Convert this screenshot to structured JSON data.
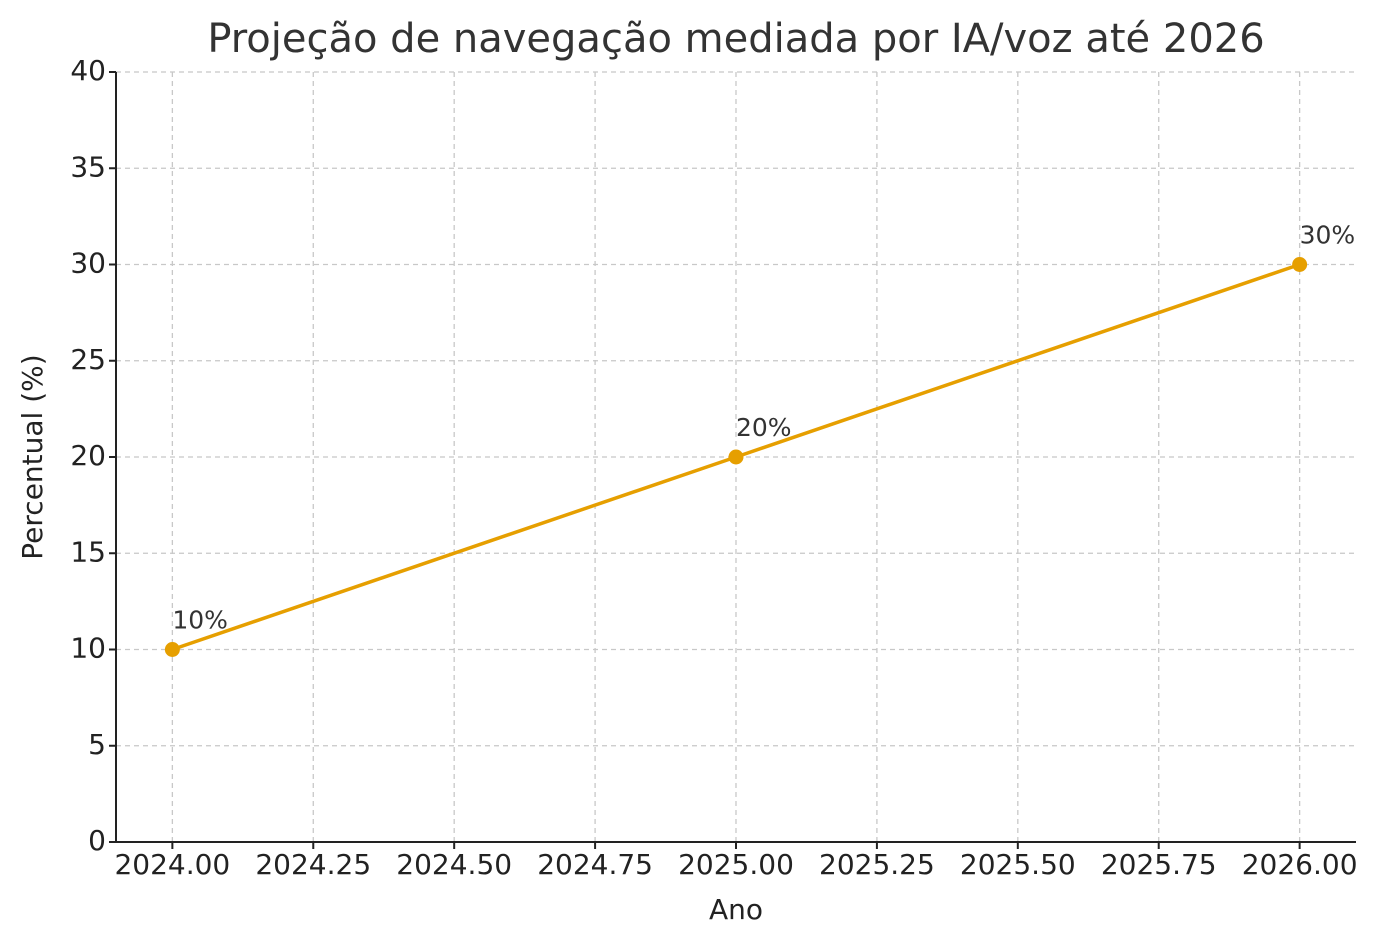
{
  "chart_data": {
    "type": "line",
    "title": "Projeção de navegação mediada por IA/voz até 2026",
    "x_label": "Ano",
    "y_label": "Percentual (%)",
    "x": [
      2024,
      2025,
      2026
    ],
    "values": [
      10,
      20,
      30
    ],
    "value_labels": [
      "10%",
      "20%",
      "30%"
    ],
    "color": "#e69f00",
    "xlim": [
      2023.9,
      2026.1
    ],
    "xticks": [
      {
        "value": 2024,
        "label": "2024.00"
      },
      {
        "value": 2024.25,
        "label": "2024.25"
      },
      {
        "value": 2024.5,
        "label": "2024.50"
      },
      {
        "value": 2024.75,
        "label": "2024.75"
      },
      {
        "value": 2025,
        "label": "2025.00"
      },
      {
        "value": 2025.25,
        "label": "2025.25"
      },
      {
        "value": 2025.5,
        "label": "2025.50"
      },
      {
        "value": 2025.75,
        "label": "2025.75"
      },
      {
        "value": 2026,
        "label": "2026.00"
      }
    ],
    "ylim": [
      0,
      40
    ],
    "yticks": [
      0,
      5,
      10,
      15,
      20,
      25,
      30,
      35,
      40
    ],
    "grid": true
  }
}
